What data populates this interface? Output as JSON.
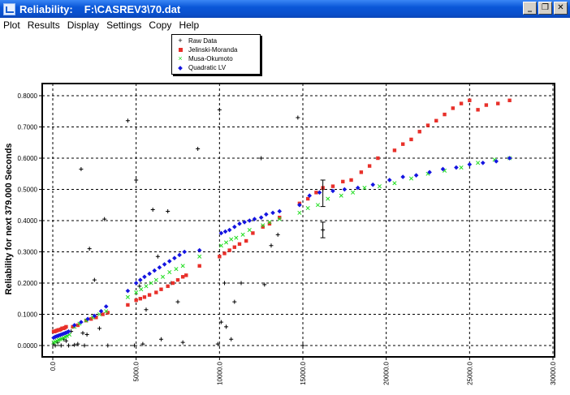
{
  "window": {
    "title": "Reliability:",
    "path": "F:\\CASREV3\\70.dat",
    "minimize": "_",
    "restore": "❐",
    "close": "✕"
  },
  "menu": [
    "Plot",
    "Results",
    "Display",
    "Settings",
    "Copy",
    "Help"
  ],
  "colors": {
    "raw": "#000000",
    "jm": "#e8302a",
    "mo": "#22dd22",
    "qlv": "#1414e0"
  },
  "chart_data": {
    "type": "scatter",
    "title": "",
    "xlabel": "",
    "ylabel": "Reliability for next 379.000 Seconds",
    "xlim": [
      0,
      30000
    ],
    "ylim": [
      0,
      0.8
    ],
    "x_ticks": [
      "0.0",
      "5000.0",
      "10000.0",
      "15000.0",
      "20000.0",
      "25000.0",
      "30000.0"
    ],
    "y_ticks": [
      "0.0000",
      "0.1000",
      "0.2000",
      "0.3000",
      "0.4000",
      "0.5000",
      "0.6000",
      "0.7000",
      "0.8000"
    ],
    "grid": true,
    "legend_position": "top-center",
    "series": [
      {
        "name": "Raw Data",
        "marker": "plus",
        "points": [
          [
            50,
            0.005
          ],
          [
            150,
            0.0
          ],
          [
            300,
            0.01
          ],
          [
            500,
            0.0
          ],
          [
            650,
            0.02
          ],
          [
            800,
            0.015
          ],
          [
            950,
            0.0
          ],
          [
            1100,
            0.045
          ],
          [
            1300,
            0.002
          ],
          [
            1500,
            0.005
          ],
          [
            1700,
            0.565
          ],
          [
            1800,
            0.04
          ],
          [
            1900,
            0.0
          ],
          [
            2050,
            0.035
          ],
          [
            2200,
            0.31
          ],
          [
            2500,
            0.21
          ],
          [
            2800,
            0.055
          ],
          [
            3100,
            0.405
          ],
          [
            3300,
            0.0
          ],
          [
            4500,
            0.72
          ],
          [
            4900,
            0.0
          ],
          [
            5000,
            0.53
          ],
          [
            5200,
            0.19
          ],
          [
            5400,
            0.005
          ],
          [
            5600,
            0.115
          ],
          [
            6000,
            0.435
          ],
          [
            6300,
            0.285
          ],
          [
            6500,
            0.02
          ],
          [
            6900,
            0.43
          ],
          [
            7100,
            0.2
          ],
          [
            7500,
            0.14
          ],
          [
            7800,
            0.01
          ],
          [
            8700,
            0.63
          ],
          [
            9900,
            0.005
          ],
          [
            10000,
            0.755
          ],
          [
            10100,
            0.075
          ],
          [
            10300,
            0.2
          ],
          [
            10400,
            0.06
          ],
          [
            10700,
            0.02
          ],
          [
            10900,
            0.14
          ],
          [
            11300,
            0.2
          ],
          [
            12500,
            0.6
          ],
          [
            12700,
            0.195
          ],
          [
            13100,
            0.32
          ],
          [
            13500,
            0.355
          ],
          [
            14700,
            0.73
          ],
          [
            15000,
            0.0
          ],
          [
            16200,
            0.37
          ],
          [
            16200,
            0.5
          ]
        ]
      },
      {
        "name": "Jelinski-Moranda",
        "marker": "square",
        "points": [
          [
            50,
            0.045
          ],
          [
            120,
            0.045
          ],
          [
            190,
            0.047
          ],
          [
            260,
            0.048
          ],
          [
            330,
            0.05
          ],
          [
            400,
            0.05
          ],
          [
            480,
            0.052
          ],
          [
            560,
            0.055
          ],
          [
            640,
            0.055
          ],
          [
            720,
            0.057
          ],
          [
            800,
            0.06
          ],
          [
            1200,
            0.06
          ],
          [
            1500,
            0.065
          ],
          [
            2000,
            0.08
          ],
          [
            2300,
            0.085
          ],
          [
            2600,
            0.09
          ],
          [
            3000,
            0.1
          ],
          [
            3300,
            0.105
          ],
          [
            4500,
            0.13
          ],
          [
            5000,
            0.145
          ],
          [
            5250,
            0.15
          ],
          [
            5500,
            0.155
          ],
          [
            5800,
            0.162
          ],
          [
            6200,
            0.17
          ],
          [
            6500,
            0.18
          ],
          [
            6900,
            0.19
          ],
          [
            7200,
            0.2
          ],
          [
            7500,
            0.21
          ],
          [
            7800,
            0.22
          ],
          [
            8000,
            0.225
          ],
          [
            8800,
            0.255
          ],
          [
            10000,
            0.285
          ],
          [
            10300,
            0.295
          ],
          [
            10600,
            0.305
          ],
          [
            10900,
            0.315
          ],
          [
            11200,
            0.325
          ],
          [
            11600,
            0.335
          ],
          [
            12000,
            0.36
          ],
          [
            12600,
            0.38
          ],
          [
            13000,
            0.39
          ],
          [
            13600,
            0.41
          ],
          [
            14800,
            0.455
          ],
          [
            15300,
            0.47
          ],
          [
            15800,
            0.49
          ],
          [
            16200,
            0.505
          ],
          [
            16800,
            0.51
          ],
          [
            17400,
            0.525
          ],
          [
            17900,
            0.53
          ],
          [
            18500,
            0.555
          ],
          [
            19000,
            0.575
          ],
          [
            19500,
            0.6
          ],
          [
            20500,
            0.625
          ],
          [
            21000,
            0.645
          ],
          [
            21500,
            0.66
          ],
          [
            22000,
            0.685
          ],
          [
            22500,
            0.705
          ],
          [
            23000,
            0.72
          ],
          [
            23500,
            0.74
          ],
          [
            24000,
            0.76
          ],
          [
            24500,
            0.775
          ],
          [
            25000,
            0.785
          ],
          [
            25500,
            0.755
          ],
          [
            26000,
            0.77
          ],
          [
            26700,
            0.775
          ],
          [
            27400,
            0.785
          ]
        ]
      },
      {
        "name": "Musa-Okumoto",
        "marker": "x",
        "points": [
          [
            50,
            0.01
          ],
          [
            150,
            0.012
          ],
          [
            250,
            0.015
          ],
          [
            350,
            0.018
          ],
          [
            450,
            0.02
          ],
          [
            550,
            0.022
          ],
          [
            650,
            0.025
          ],
          [
            750,
            0.028
          ],
          [
            850,
            0.03
          ],
          [
            1000,
            0.035
          ],
          [
            1300,
            0.06
          ],
          [
            1600,
            0.07
          ],
          [
            2000,
            0.08
          ],
          [
            2400,
            0.09
          ],
          [
            2800,
            0.1
          ],
          [
            3200,
            0.11
          ],
          [
            4500,
            0.155
          ],
          [
            5000,
            0.17
          ],
          [
            5300,
            0.18
          ],
          [
            5600,
            0.19
          ],
          [
            5900,
            0.2
          ],
          [
            6200,
            0.21
          ],
          [
            6600,
            0.22
          ],
          [
            7000,
            0.235
          ],
          [
            7400,
            0.245
          ],
          [
            7800,
            0.255
          ],
          [
            8800,
            0.285
          ],
          [
            10100,
            0.32
          ],
          [
            10400,
            0.33
          ],
          [
            10700,
            0.34
          ],
          [
            11000,
            0.345
          ],
          [
            11400,
            0.355
          ],
          [
            11800,
            0.37
          ],
          [
            12600,
            0.385
          ],
          [
            13000,
            0.395
          ],
          [
            13600,
            0.405
          ],
          [
            14800,
            0.425
          ],
          [
            15300,
            0.44
          ],
          [
            15900,
            0.45
          ],
          [
            16500,
            0.47
          ],
          [
            17300,
            0.48
          ],
          [
            18000,
            0.49
          ],
          [
            18700,
            0.505
          ],
          [
            19600,
            0.51
          ],
          [
            20500,
            0.52
          ],
          [
            21500,
            0.535
          ],
          [
            22500,
            0.55
          ],
          [
            23500,
            0.56
          ],
          [
            24500,
            0.57
          ],
          [
            25500,
            0.585
          ],
          [
            26500,
            0.595
          ],
          [
            27400,
            0.6
          ]
        ]
      },
      {
        "name": "Quadratic LV",
        "marker": "diamond",
        "points": [
          [
            50,
            0.025
          ],
          [
            150,
            0.028
          ],
          [
            250,
            0.03
          ],
          [
            350,
            0.032
          ],
          [
            450,
            0.034
          ],
          [
            550,
            0.036
          ],
          [
            650,
            0.038
          ],
          [
            750,
            0.04
          ],
          [
            850,
            0.042
          ],
          [
            950,
            0.045
          ],
          [
            1300,
            0.065
          ],
          [
            1700,
            0.075
          ],
          [
            2100,
            0.085
          ],
          [
            2500,
            0.095
          ],
          [
            2900,
            0.11
          ],
          [
            3200,
            0.125
          ],
          [
            4500,
            0.175
          ],
          [
            5000,
            0.2
          ],
          [
            5250,
            0.21
          ],
          [
            5500,
            0.22
          ],
          [
            5800,
            0.23
          ],
          [
            6100,
            0.24
          ],
          [
            6400,
            0.25
          ],
          [
            6700,
            0.26
          ],
          [
            7000,
            0.27
          ],
          [
            7300,
            0.28
          ],
          [
            7600,
            0.29
          ],
          [
            7900,
            0.3
          ],
          [
            8800,
            0.305
          ],
          [
            10100,
            0.36
          ],
          [
            10350,
            0.365
          ],
          [
            10600,
            0.37
          ],
          [
            10900,
            0.38
          ],
          [
            11200,
            0.39
          ],
          [
            11500,
            0.395
          ],
          [
            11800,
            0.4
          ],
          [
            12100,
            0.405
          ],
          [
            12500,
            0.41
          ],
          [
            12800,
            0.42
          ],
          [
            13200,
            0.425
          ],
          [
            13600,
            0.43
          ],
          [
            14800,
            0.45
          ],
          [
            15400,
            0.48
          ],
          [
            16000,
            0.49
          ],
          [
            16800,
            0.495
          ],
          [
            17500,
            0.5
          ],
          [
            18300,
            0.505
          ],
          [
            19200,
            0.515
          ],
          [
            20200,
            0.53
          ],
          [
            21000,
            0.54
          ],
          [
            21800,
            0.545
          ],
          [
            22600,
            0.555
          ],
          [
            23400,
            0.565
          ],
          [
            24200,
            0.57
          ],
          [
            25000,
            0.58
          ],
          [
            25800,
            0.585
          ],
          [
            26600,
            0.59
          ],
          [
            27400,
            0.6
          ]
        ]
      }
    ],
    "error_bars": [
      {
        "x": 16200,
        "low": 0.345,
        "high": 0.395
      },
      {
        "x": 16200,
        "low": 0.445,
        "high": 0.53
      }
    ]
  }
}
